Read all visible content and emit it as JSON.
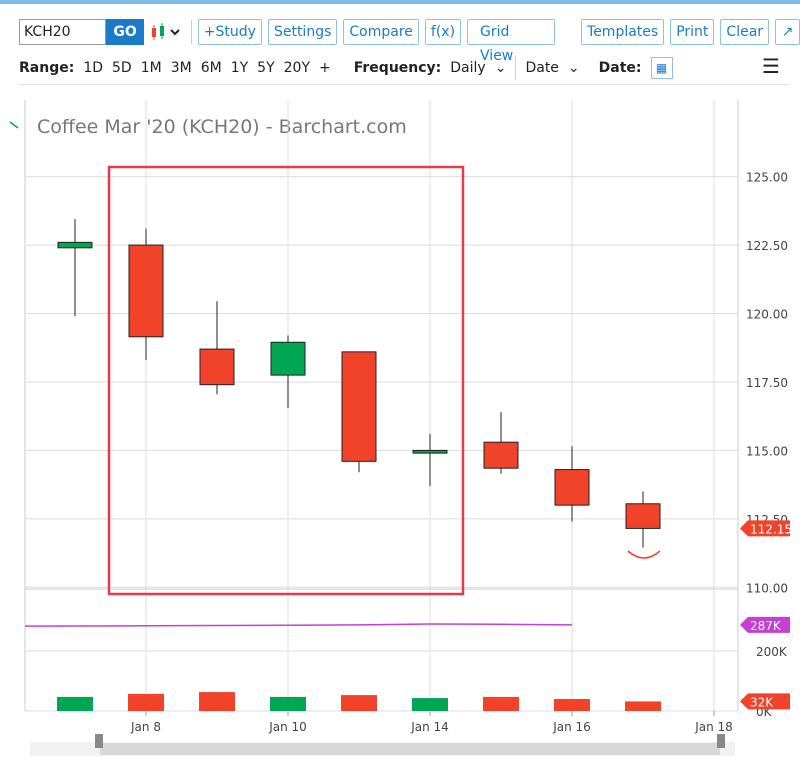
{
  "toolbar": {
    "symbol": "KCH20",
    "go": "GO",
    "buttons": [
      "+Study",
      "Settings",
      "Compare",
      "f(x)",
      "Grid View",
      "Templates",
      "Print",
      "Clear"
    ],
    "range_label": "Range:",
    "ranges": [
      "1D",
      "5D",
      "1M",
      "3M",
      "6M",
      "1Y",
      "5Y",
      "20Y",
      "+"
    ],
    "frequency_label": "Frequency:",
    "frequency": "Daily",
    "date_mode": "Date",
    "date_label": "Date:"
  },
  "chart_data": {
    "type": "candlestick",
    "title": "Coffee Mar '20 (KCH20) - Barchart.com",
    "categories": [
      null,
      "Jan 8",
      null,
      "Jan 10",
      null,
      "Jan 14",
      null,
      "Jan 16",
      null,
      "Jan 18"
    ],
    "open": [
      122.4,
      122.5,
      118.7,
      117.75,
      118.6,
      114.9,
      115.3,
      114.3,
      113.05,
      null
    ],
    "high": [
      123.45,
      123.1,
      120.45,
      119.2,
      118.6,
      115.6,
      116.4,
      115.15,
      113.5,
      null
    ],
    "low": [
      119.9,
      118.3,
      117.05,
      116.55,
      114.2,
      113.7,
      114.15,
      112.4,
      111.45,
      null
    ],
    "close": [
      122.6,
      119.15,
      117.4,
      118.95,
      114.6,
      115.0,
      114.35,
      113.0,
      112.15,
      null
    ],
    "up_color": "#00a651",
    "down_color": "#f1432a",
    "ylim": [
      109.9,
      127.8
    ],
    "yticks": [
      {
        "value": 110,
        "label": "110.00"
      },
      {
        "value": 112.5,
        "label": "112.50"
      },
      {
        "value": 115,
        "label": "115.00"
      },
      {
        "value": 117.5,
        "label": "117.50"
      },
      {
        "value": 120,
        "label": "120.00"
      },
      {
        "value": 122.5,
        "label": "122.50"
      },
      {
        "value": 125,
        "label": "125.00"
      }
    ],
    "last_price_label": {
      "value": 112.15,
      "label": "112.15"
    },
    "volume": [
      47000,
      57000,
      63000,
      47000,
      53000,
      43000,
      47000,
      40000,
      32000,
      null
    ],
    "volume_ylim": [
      0,
      400000
    ],
    "volume_yticks": [
      {
        "value": 0,
        "label": "0K"
      },
      {
        "value": 200000,
        "label": "200K"
      }
    ],
    "volume_value_label": {
      "value": 32000,
      "label": "32K"
    },
    "volume_ma": {
      "color": "#c53fd4",
      "values": [
        283000,
        284000,
        285000,
        286000,
        287000,
        290000,
        289000,
        287000,
        null,
        null
      ]
    },
    "volume_ma_label": {
      "value": 287000,
      "label": "287K"
    },
    "grid": true
  }
}
